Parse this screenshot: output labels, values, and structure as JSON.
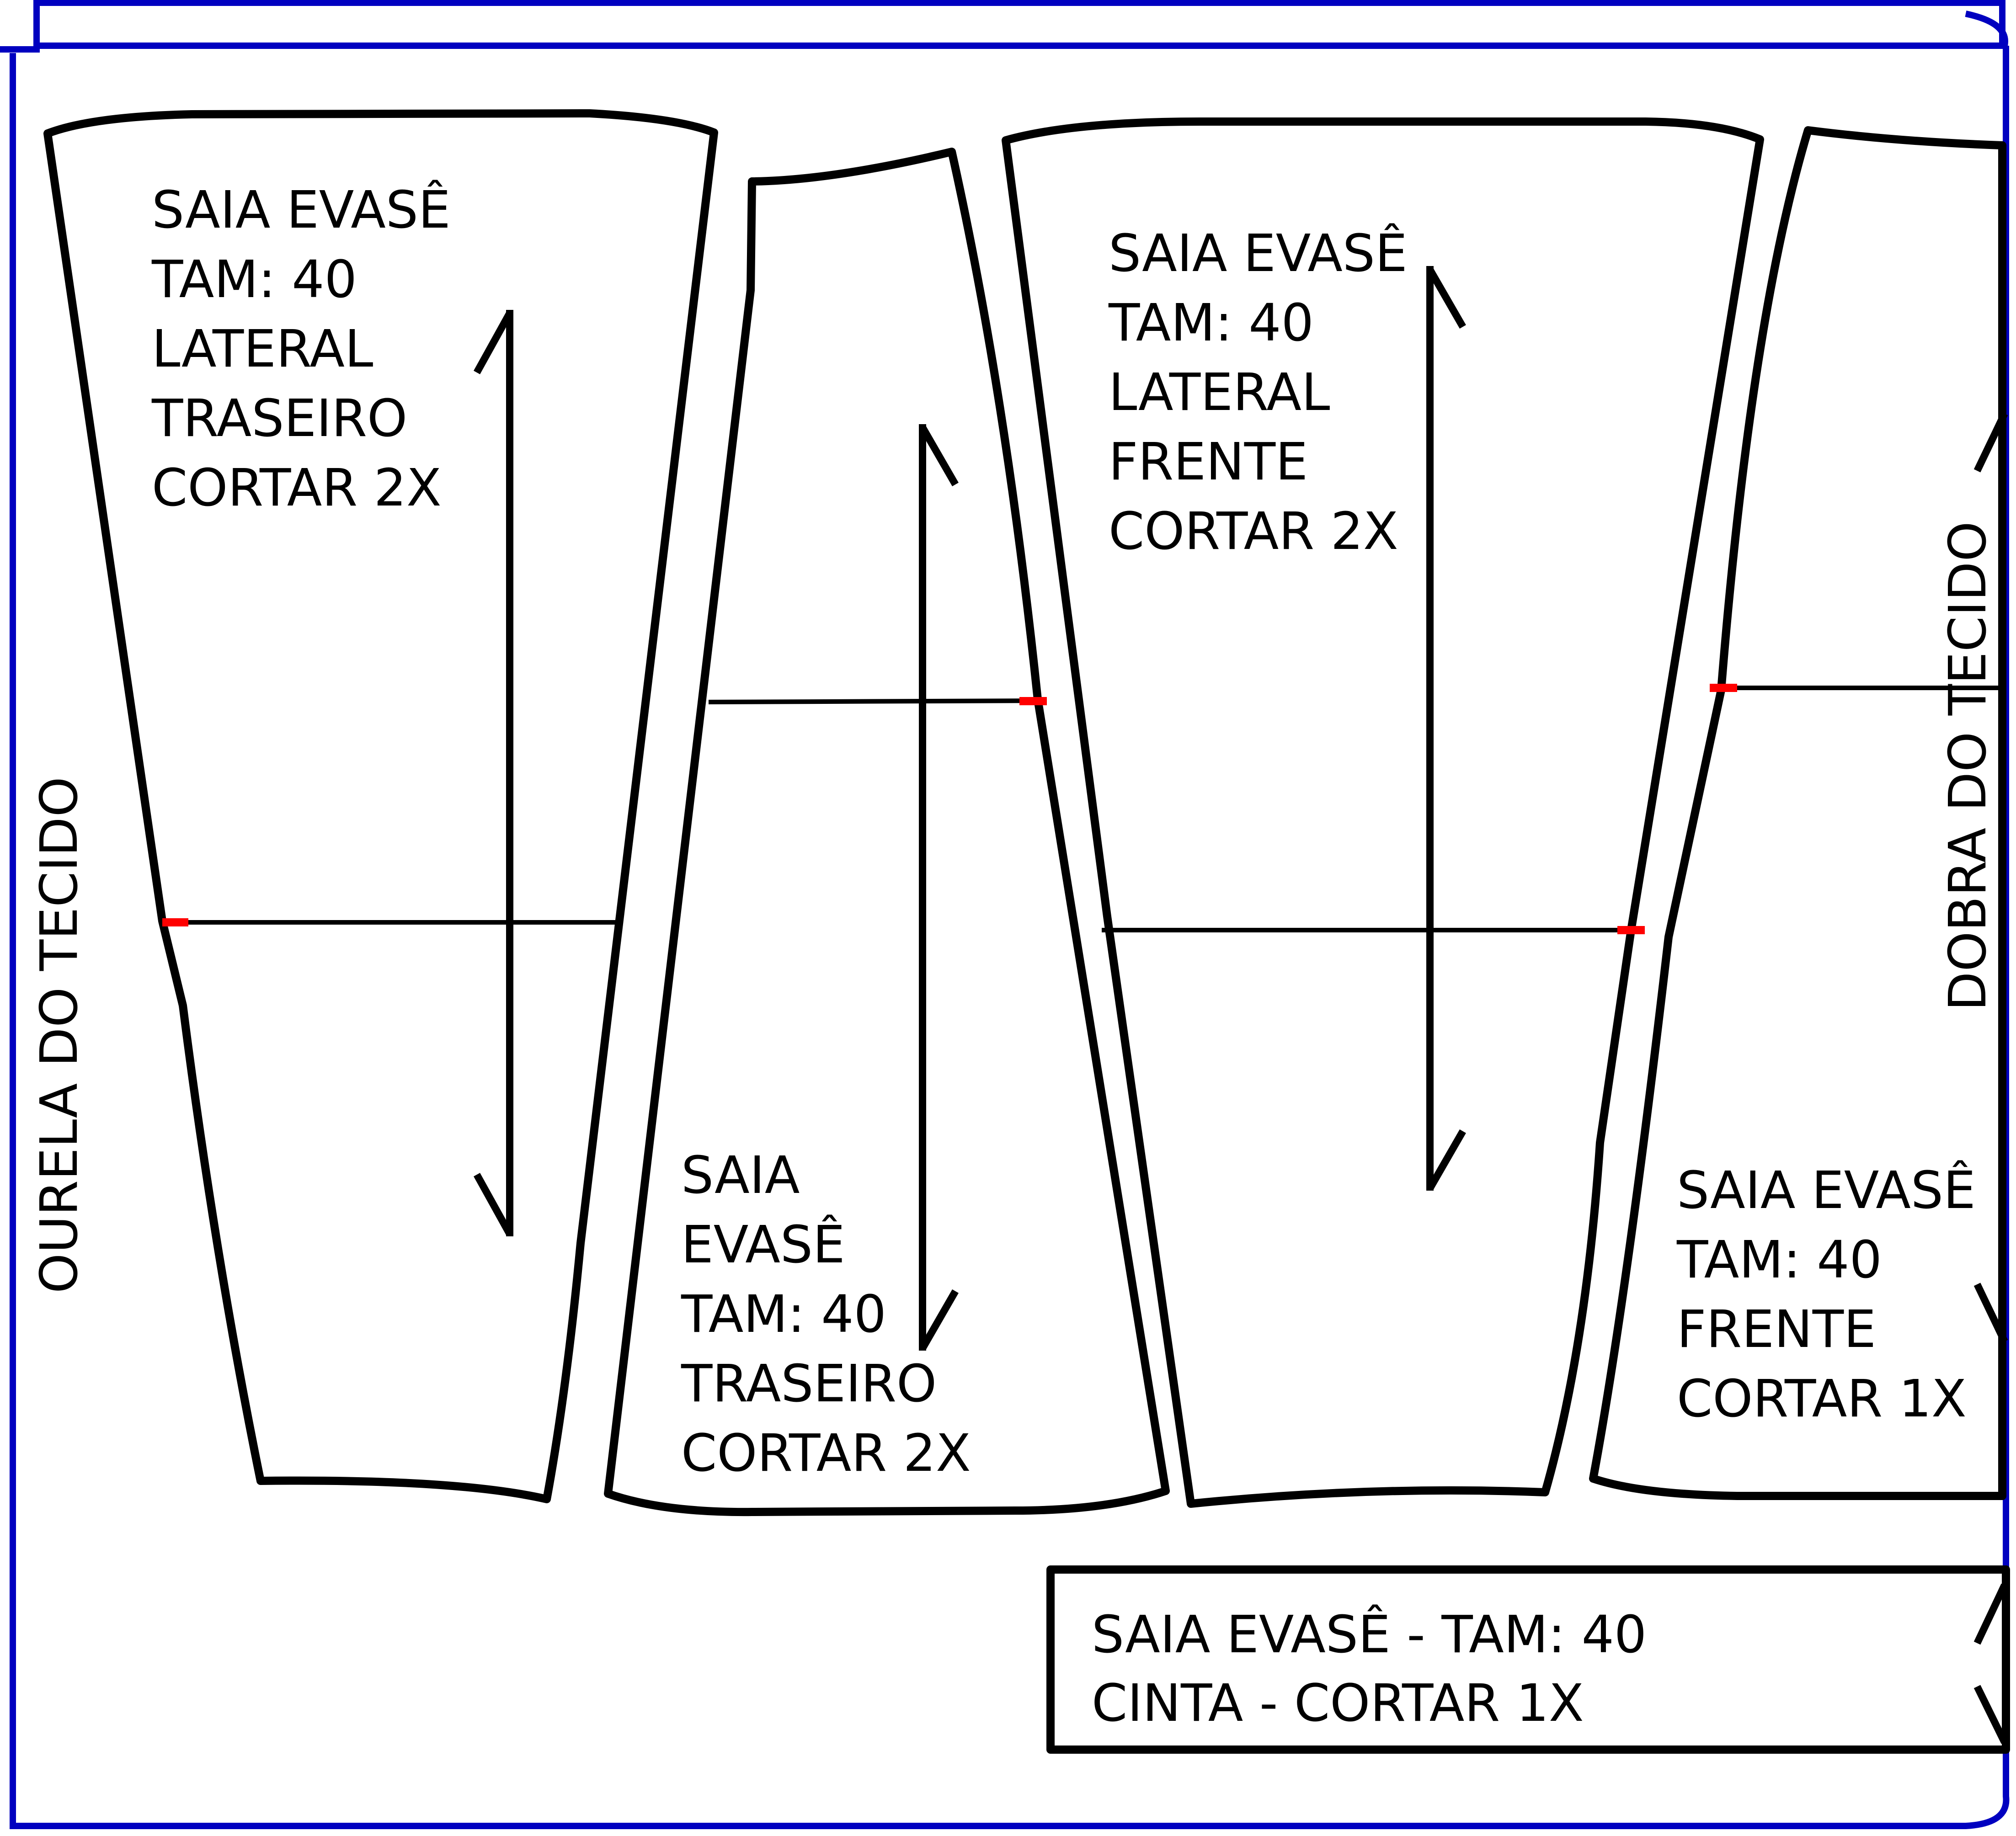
{
  "colors": {
    "fabric_border": "#0000c0",
    "outline": "#000000",
    "notch": "#ff0000",
    "background": "#ffffff"
  },
  "edges": {
    "selvage_label": "OURELA DO TECIDO",
    "fold_label": "DOBRA DO TECIDO"
  },
  "pieces": {
    "lateral_traseiro": [
      "SAIA EVASÊ",
      "TAM: 40",
      "LATERAL",
      "TRASEIRO",
      "CORTAR 2X"
    ],
    "traseiro": [
      "SAIA",
      "EVASÊ",
      "TAM: 40",
      "TRASEIRO",
      "CORTAR 2X"
    ],
    "lateral_frente": [
      "SAIA EVASÊ",
      "TAM: 40",
      "LATERAL",
      "FRENTE",
      "CORTAR 2X"
    ],
    "frente": [
      "SAIA EVASÊ",
      "TAM: 40",
      "FRENTE",
      "CORTAR 1X"
    ],
    "cinta": [
      "SAIA EVASÊ  -  TAM: 40",
      "CINTA  -  CORTAR 1X"
    ]
  }
}
